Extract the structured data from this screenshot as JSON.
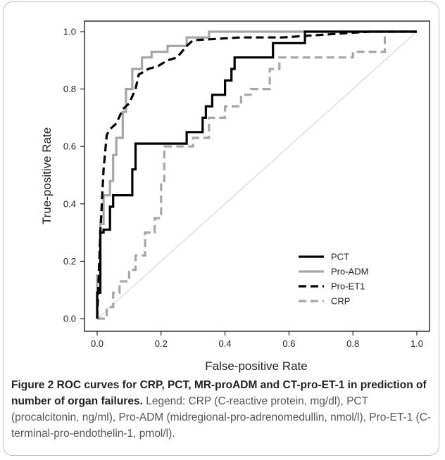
{
  "chart_data": {
    "type": "line",
    "xlabel": "False-positive Rate",
    "ylabel": "True-positive Rate",
    "xlim": [
      0.0,
      1.0
    ],
    "ylim": [
      0.0,
      1.0
    ],
    "xticks": [
      "0.0",
      "0.2",
      "0.4",
      "0.6",
      "0.8",
      "1.0"
    ],
    "yticks": [
      "0.0",
      "0.2",
      "0.4",
      "0.6",
      "0.8",
      "1.0"
    ],
    "grid": false,
    "legend_position": "bottom-right",
    "reference_line": {
      "x": [
        0,
        1
      ],
      "y": [
        0,
        1
      ],
      "color": "#d9d9d9"
    },
    "series": [
      {
        "name": "PCT",
        "color": "#000000",
        "dash": "solid",
        "x": [
          0,
          0,
          0.01,
          0.01,
          0.02,
          0.02,
          0.04,
          0.04,
          0.05,
          0.05,
          0.08,
          0.08,
          0.11,
          0.11,
          0.12,
          0.12,
          0.28,
          0.28,
          0.3,
          0.3,
          0.33,
          0.33,
          0.34,
          0.34,
          0.36,
          0.36,
          0.4,
          0.4,
          0.42,
          0.42,
          0.43,
          0.43,
          0.55,
          0.55,
          0.65,
          0.65,
          1.0
        ],
        "y": [
          0,
          0.09,
          0.09,
          0.3,
          0.3,
          0.31,
          0.31,
          0.39,
          0.39,
          0.43,
          0.43,
          0.43,
          0.43,
          0.52,
          0.52,
          0.61,
          0.61,
          0.65,
          0.65,
          0.65,
          0.65,
          0.7,
          0.7,
          0.74,
          0.74,
          0.78,
          0.78,
          0.83,
          0.83,
          0.87,
          0.87,
          0.91,
          0.91,
          0.96,
          0.96,
          1.0,
          1.0
        ]
      },
      {
        "name": "Pro-ADM",
        "color": "#a6a6a6",
        "dash": "solid",
        "x": [
          0,
          0,
          0.01,
          0.01,
          0.02,
          0.02,
          0.04,
          0.04,
          0.05,
          0.05,
          0.06,
          0.06,
          0.08,
          0.08,
          0.09,
          0.09,
          0.11,
          0.11,
          0.14,
          0.14,
          0.17,
          0.17,
          0.22,
          0.22,
          0.28,
          0.28,
          0.35,
          0.35,
          1.0
        ],
        "y": [
          0,
          0.15,
          0.15,
          0.33,
          0.33,
          0.43,
          0.43,
          0.48,
          0.48,
          0.57,
          0.57,
          0.63,
          0.63,
          0.72,
          0.72,
          0.8,
          0.8,
          0.87,
          0.87,
          0.91,
          0.91,
          0.93,
          0.93,
          0.95,
          0.95,
          0.98,
          0.98,
          1.0,
          1.0
        ]
      },
      {
        "name": "Pro-ET1",
        "color": "#000000",
        "dash": "dashed",
        "x": [
          0,
          0.01,
          0.02,
          0.03,
          0.04,
          0.06,
          0.08,
          0.1,
          0.12,
          0.13,
          0.16,
          0.19,
          0.22,
          0.25,
          0.28,
          0.3,
          0.45,
          0.58,
          0.85,
          1.0
        ],
        "y": [
          0,
          0.3,
          0.52,
          0.64,
          0.66,
          0.68,
          0.73,
          0.75,
          0.8,
          0.85,
          0.87,
          0.88,
          0.9,
          0.91,
          0.95,
          0.97,
          0.98,
          0.98,
          1.0,
          1.0
        ]
      },
      {
        "name": "CRP",
        "color": "#a6a6a6",
        "dash": "dashed",
        "x": [
          0,
          0.03,
          0.03,
          0.05,
          0.05,
          0.07,
          0.07,
          0.1,
          0.1,
          0.12,
          0.12,
          0.15,
          0.15,
          0.18,
          0.18,
          0.2,
          0.2,
          0.21,
          0.21,
          0.3,
          0.3,
          0.35,
          0.35,
          0.4,
          0.4,
          0.45,
          0.45,
          0.48,
          0.48,
          0.54,
          0.54,
          0.57,
          0.57,
          0.8,
          0.8,
          0.9,
          0.9,
          1.0
        ],
        "y": [
          0,
          0.0,
          0.04,
          0.04,
          0.09,
          0.09,
          0.13,
          0.13,
          0.17,
          0.17,
          0.22,
          0.22,
          0.3,
          0.3,
          0.35,
          0.35,
          0.48,
          0.48,
          0.6,
          0.6,
          0.63,
          0.63,
          0.7,
          0.7,
          0.74,
          0.74,
          0.78,
          0.78,
          0.8,
          0.8,
          0.87,
          0.87,
          0.91,
          0.91,
          0.93,
          0.93,
          1.0,
          1.0
        ]
      }
    ]
  },
  "caption": {
    "bold": "Figure 2 ROC curves for CRP, PCT, MR-proADM and CT-pro-ET-1 in prediction of number of organ failures.",
    "plain": " Legend: CRP (C-reactive protein, mg/dl), PCT (procalcitonin, ng/ml), Pro-ADM (midregional-pro-adrenomedullin, nmol/l), Pro-ET-1 (C-terminal-pro-endothelin-1, pmol/l)."
  }
}
